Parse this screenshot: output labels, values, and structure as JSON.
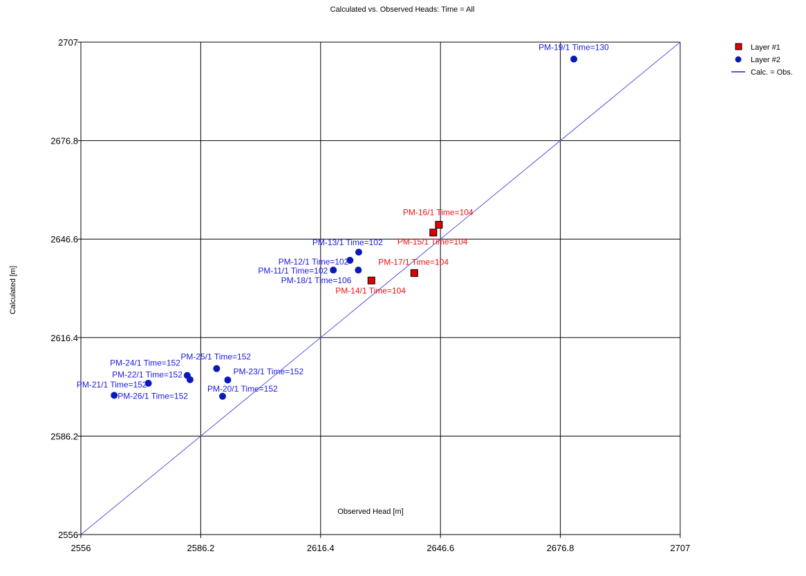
{
  "chart_data": {
    "type": "scatter",
    "title": "Calculated vs. Observed Heads: Time = All",
    "xlabel": "Observed Head [m]",
    "ylabel": "Calculated [m]",
    "xlim": [
      2556,
      2707
    ],
    "ylim": [
      2556,
      2707
    ],
    "xticks": [
      "2556",
      "2586.2",
      "2616.4",
      "2646.6",
      "2676.8",
      "2707"
    ],
    "yticks": [
      "2556",
      "2586.2",
      "2616.4",
      "2646.6",
      "2676.8",
      "2707"
    ],
    "grid": true,
    "legend_position": "top-right",
    "legend": [
      {
        "label": "Layer #1",
        "marker": "square",
        "color": "#e00000"
      },
      {
        "label": "Layer #2",
        "marker": "circle",
        "color": "#0a1ab8"
      },
      {
        "label": "Calc. = Obs.",
        "marker": "line",
        "color": "#5555dd"
      }
    ],
    "reference_line": {
      "name": "Calc. = Obs.",
      "x": [
        2556,
        2707
      ],
      "y": [
        2556,
        2707
      ]
    },
    "series": [
      {
        "name": "Layer #1",
        "marker": "square",
        "color": "#e00000",
        "label_color": "#ee1111",
        "points": [
          {
            "label": "PM-16/1 Time=104",
            "x": 2646.2,
            "y": 2651.0
          },
          {
            "label": "PM-15/1 Time=104",
            "x": 2644.8,
            "y": 2648.6
          },
          {
            "label": "PM-17/1 Time=104",
            "x": 2640.0,
            "y": 2636.2
          },
          {
            "label": "PM-14/1 Time=104",
            "x": 2629.2,
            "y": 2633.9
          }
        ]
      },
      {
        "name": "Layer #2",
        "marker": "circle",
        "color": "#0a1ab8",
        "label_color": "#1a1adc",
        "points": [
          {
            "label": "PM-19/1 Time=130",
            "x": 2680.2,
            "y": 2701.8
          },
          {
            "label": "PM-13/1 Time=102",
            "x": 2626.0,
            "y": 2642.6
          },
          {
            "label": "PM-12/1 Time=102",
            "x": 2623.8,
            "y": 2640.1
          },
          {
            "label": "PM-11/1 Time=102",
            "x": 2619.6,
            "y": 2637.1
          },
          {
            "label": "PM-18/1 Time=106",
            "x": 2625.9,
            "y": 2637.1
          },
          {
            "label": "PM-25/1 Time=152",
            "x": 2590.2,
            "y": 2606.9
          },
          {
            "label": "PM-24/1 Time=152",
            "x": 2582.8,
            "y": 2604.8
          },
          {
            "label": "PM-22/1 Time=152",
            "x": 2583.5,
            "y": 2603.5
          },
          {
            "label": "PM-23/1 Time=152",
            "x": 2593.0,
            "y": 2603.4
          },
          {
            "label": "PM-21/1 Time=152",
            "x": 2573.0,
            "y": 2602.4
          },
          {
            "label": "PM-26/1 Time=152",
            "x": 2564.4,
            "y": 2598.7
          },
          {
            "label": "PM-20/1 Time=152",
            "x": 2591.7,
            "y": 2598.4
          }
        ]
      }
    ]
  }
}
